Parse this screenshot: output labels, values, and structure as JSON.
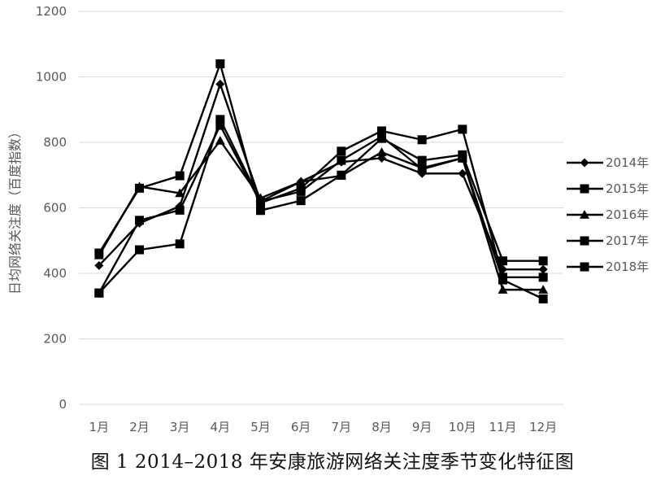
{
  "caption": "图 1 2014–2018 年安康旅游网络关注度季节变化特征图",
  "chart_data": {
    "type": "line",
    "title": "",
    "xlabel": "",
    "ylabel": "日均网络关注度（百度指数）",
    "ylim": [
      0,
      1200
    ],
    "yticks": [
      0,
      200,
      400,
      600,
      800,
      1000,
      1200
    ],
    "grid": true,
    "legend": "right",
    "line_color": "#000000",
    "categories": [
      "1月",
      "2月",
      "3月",
      "4月",
      "5月",
      "6月",
      "7月",
      "8月",
      "9月",
      "10月",
      "11月",
      "12月"
    ],
    "series": [
      {
        "name": "2014年",
        "marker": "diamond",
        "values": [
          424,
          553,
          605,
          978,
          620,
          680,
          740,
          752,
          705,
          705,
          412,
          412
        ]
      },
      {
        "name": "2015年",
        "marker": "square",
        "values": [
          340,
          562,
          593,
          852,
          615,
          660,
          773,
          835,
          808,
          840,
          388,
          388
        ]
      },
      {
        "name": "2016年",
        "marker": "triangle",
        "values": [
          455,
          665,
          645,
          805,
          630,
          680,
          698,
          770,
          722,
          752,
          350,
          350
        ]
      },
      {
        "name": "2017年",
        "marker": "square",
        "values": [
          462,
          660,
          698,
          1040,
          592,
          622,
          700,
          812,
          745,
          762,
          438,
          438
        ]
      },
      {
        "name": "2018年",
        "marker": "square",
        "values": [
          340,
          472,
          490,
          870,
          620,
          650,
          745,
          818,
          718,
          752,
          380,
          322
        ]
      }
    ]
  }
}
